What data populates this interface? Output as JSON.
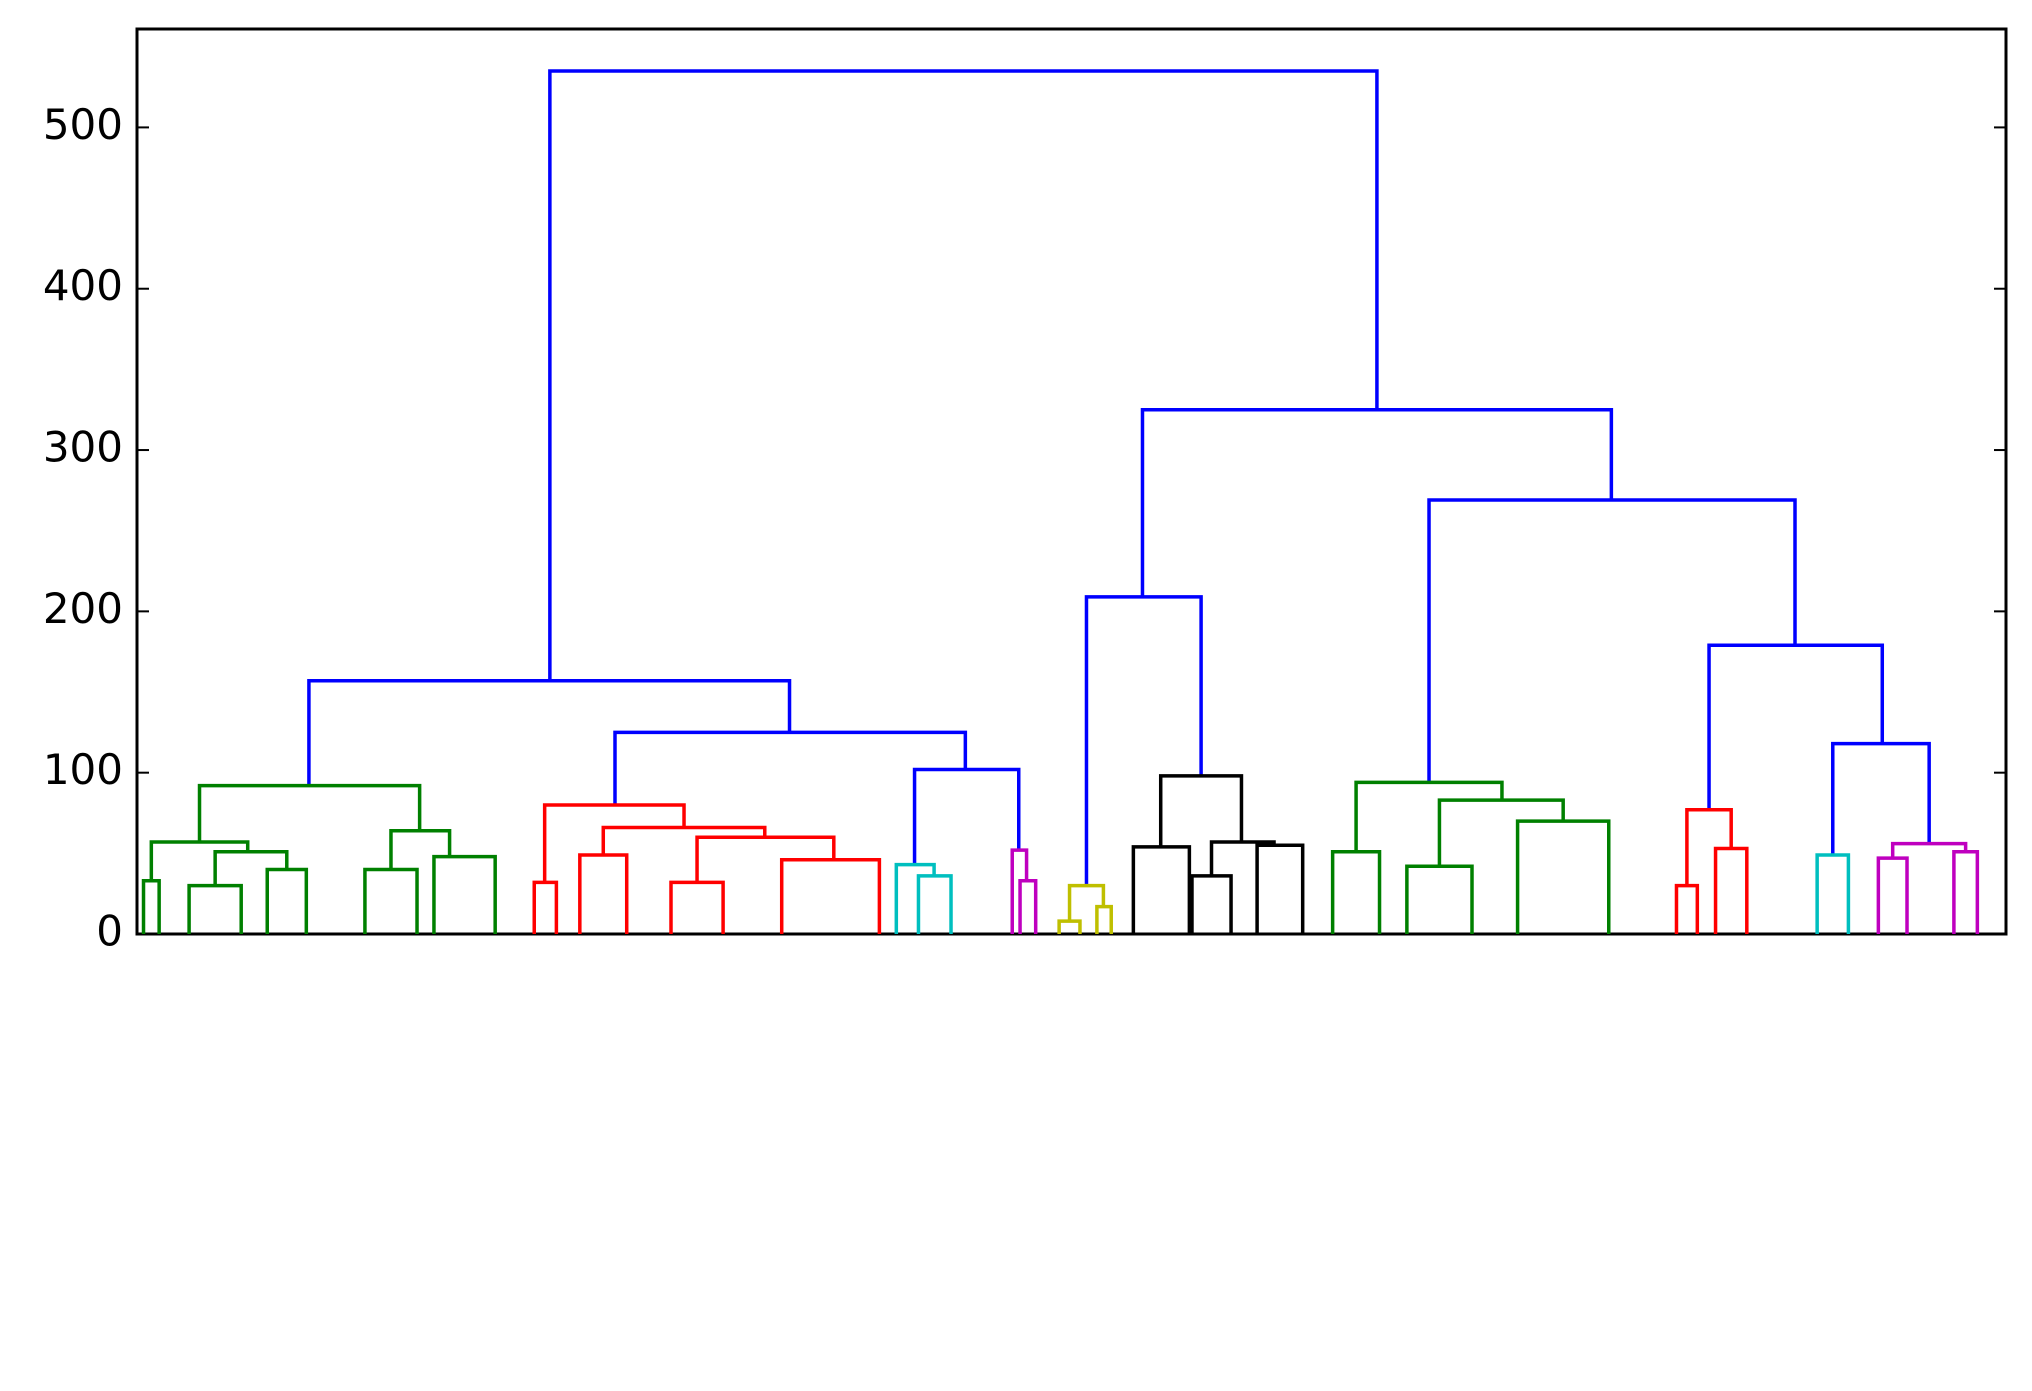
{
  "chart_data": {
    "type": "dendrogram",
    "xlim": [
      0,
      1435
    ],
    "ylim": [
      0,
      561
    ],
    "yticks": [
      0,
      100,
      200,
      300,
      400,
      500
    ],
    "links": [
      {
        "x": [
          317,
          317,
          952,
          952
        ],
        "y": [
          157,
          535,
          535,
          325
        ],
        "color": "#0000ff"
      },
      {
        "x": [
          132,
          132,
          501,
          501
        ],
        "y": [
          92,
          157,
          157,
          125
        ],
        "color": "#0000ff"
      },
      {
        "x": [
          367,
          367,
          636,
          636
        ],
        "y": [
          80,
          125,
          125,
          102
        ],
        "color": "#0000ff"
      },
      {
        "x": [
          597,
          597,
          677,
          677
        ],
        "y": [
          43,
          102,
          102,
          52
        ],
        "color": "#0000ff"
      },
      {
        "x": [
          772,
          772,
          1132,
          1132
        ],
        "y": [
          209,
          325,
          325,
          269
        ],
        "color": "#0000ff"
      },
      {
        "x": [
          729,
          729,
          817,
          817
        ],
        "y": [
          30,
          209,
          209,
          98
        ],
        "color": "#0000ff"
      },
      {
        "x": [
          992,
          992,
          1273,
          1273
        ],
        "y": [
          94,
          269,
          269,
          179
        ],
        "color": "#0000ff"
      },
      {
        "x": [
          1207,
          1207,
          1340,
          1340
        ],
        "y": [
          77,
          179,
          179,
          118
        ],
        "color": "#0000ff"
      },
      {
        "x": [
          1302,
          1302,
          1376,
          1376
        ],
        "y": [
          49,
          118,
          118,
          56
        ],
        "color": "#0000ff"
      },
      {
        "x": [
          48,
          48,
          217,
          217
        ],
        "y": [
          57,
          92,
          92,
          64
        ],
        "color": "#008000"
      },
      {
        "x": [
          11,
          11,
          85,
          85
        ],
        "y": [
          33,
          57,
          57,
          51
        ],
        "color": "#008000"
      },
      {
        "x": [
          5,
          5,
          17,
          17
        ],
        "y": [
          0,
          33,
          33,
          0
        ],
        "color": "#008000"
      },
      {
        "x": [
          60,
          60,
          115,
          115
        ],
        "y": [
          30,
          51,
          51,
          40
        ],
        "color": "#008000"
      },
      {
        "x": [
          40,
          40,
          80,
          80
        ],
        "y": [
          0,
          30,
          30,
          0
        ],
        "color": "#008000"
      },
      {
        "x": [
          100,
          100,
          130,
          130
        ],
        "y": [
          0,
          40,
          40,
          0
        ],
        "color": "#008000"
      },
      {
        "x": [
          195,
          195,
          240,
          240
        ],
        "y": [
          40,
          64,
          64,
          48
        ],
        "color": "#008000"
      },
      {
        "x": [
          175,
          175,
          215,
          215
        ],
        "y": [
          0,
          40,
          40,
          0
        ],
        "color": "#008000"
      },
      {
        "x": [
          228,
          228,
          275,
          275
        ],
        "y": [
          0,
          48,
          48,
          0
        ],
        "color": "#008000"
      },
      {
        "x": [
          313,
          313,
          420,
          420
        ],
        "y": [
          32,
          80,
          80,
          66
        ],
        "color": "#ff0000"
      },
      {
        "x": [
          305,
          305,
          322,
          322
        ],
        "y": [
          0,
          32,
          32,
          0
        ],
        "color": "#ff0000"
      },
      {
        "x": [
          358,
          358,
          482,
          482
        ],
        "y": [
          49,
          66,
          66,
          60
        ],
        "color": "#ff0000"
      },
      {
        "x": [
          340,
          340,
          376,
          376
        ],
        "y": [
          0,
          49,
          49,
          0
        ],
        "color": "#ff0000"
      },
      {
        "x": [
          430,
          430,
          535,
          535
        ],
        "y": [
          32,
          60,
          60,
          46
        ],
        "color": "#ff0000"
      },
      {
        "x": [
          410,
          410,
          450,
          450
        ],
        "y": [
          0,
          32,
          32,
          0
        ],
        "color": "#ff0000"
      },
      {
        "x": [
          495,
          495,
          570,
          570
        ],
        "y": [
          0,
          46,
          46,
          0
        ],
        "color": "#ff0000"
      },
      {
        "x": [
          583,
          583,
          612,
          612
        ],
        "y": [
          0,
          43,
          43,
          36
        ],
        "color": "#00bfbf"
      },
      {
        "x": [
          600,
          600,
          625,
          625
        ],
        "y": [
          0,
          36,
          36,
          0
        ],
        "color": "#00bfbf"
      },
      {
        "x": [
          672,
          672,
          683,
          683
        ],
        "y": [
          0,
          52,
          52,
          33
        ],
        "color": "#bf00bf"
      },
      {
        "x": [
          678,
          678,
          690,
          690
        ],
        "y": [
          0,
          33,
          33,
          0
        ],
        "color": "#bf00bf"
      },
      {
        "x": [
          716,
          716,
          742,
          742
        ],
        "y": [
          8,
          30,
          30,
          17
        ],
        "color": "#bfbf00"
      },
      {
        "x": [
          708,
          708,
          724,
          724
        ],
        "y": [
          0,
          8,
          8,
          0
        ],
        "color": "#bfbf00"
      },
      {
        "x": [
          737,
          737,
          748,
          748
        ],
        "y": [
          0,
          17,
          17,
          0
        ],
        "color": "#bfbf00"
      },
      {
        "x": [
          786,
          786,
          848,
          848
        ],
        "y": [
          54,
          98,
          98,
          57
        ],
        "color": "#000000"
      },
      {
        "x": [
          765,
          765,
          808,
          808
        ],
        "y": [
          0,
          54,
          54,
          0
        ],
        "color": "#000000"
      },
      {
        "x": [
          825,
          825,
          873,
          873
        ],
        "y": [
          36,
          57,
          57,
          55
        ],
        "color": "#000000"
      },
      {
        "x": [
          810,
          810,
          840,
          840
        ],
        "y": [
          0,
          36,
          36,
          0
        ],
        "color": "#000000"
      },
      {
        "x": [
          860,
          860,
          895,
          895
        ],
        "y": [
          0,
          55,
          55,
          0
        ],
        "color": "#000000"
      },
      {
        "x": [
          936,
          936,
          1048,
          1048
        ],
        "y": [
          51,
          94,
          94,
          83
        ],
        "color": "#008000"
      },
      {
        "x": [
          918,
          918,
          954,
          954
        ],
        "y": [
          0,
          51,
          51,
          0
        ],
        "color": "#008000"
      },
      {
        "x": [
          1000,
          1000,
          1095,
          1095
        ],
        "y": [
          42,
          83,
          83,
          70
        ],
        "color": "#008000"
      },
      {
        "x": [
          975,
          975,
          1025,
          1025
        ],
        "y": [
          0,
          42,
          42,
          0
        ],
        "color": "#008000"
      },
      {
        "x": [
          1060,
          1060,
          1130,
          1130
        ],
        "y": [
          0,
          70,
          70,
          0
        ],
        "color": "#008000"
      },
      {
        "x": [
          1190,
          1190,
          1224,
          1224
        ],
        "y": [
          30,
          77,
          77,
          53
        ],
        "color": "#ff0000"
      },
      {
        "x": [
          1182,
          1182,
          1198,
          1198
        ],
        "y": [
          0,
          30,
          30,
          0
        ],
        "color": "#ff0000"
      },
      {
        "x": [
          1212,
          1212,
          1236,
          1236
        ],
        "y": [
          0,
          53,
          53,
          0
        ],
        "color": "#ff0000"
      },
      {
        "x": [
          1290,
          1290,
          1314,
          1314
        ],
        "y": [
          0,
          49,
          49,
          0
        ],
        "color": "#00bfbf"
      },
      {
        "x": [
          1348,
          1348,
          1404,
          1404
        ],
        "y": [
          47,
          56,
          56,
          51
        ],
        "color": "#bf00bf"
      },
      {
        "x": [
          1337,
          1337,
          1359,
          1359
        ],
        "y": [
          0,
          47,
          47,
          0
        ],
        "color": "#bf00bf"
      },
      {
        "x": [
          1395,
          1395,
          1413,
          1413
        ],
        "y": [
          0,
          51,
          51,
          0
        ],
        "color": "#bf00bf"
      }
    ]
  }
}
